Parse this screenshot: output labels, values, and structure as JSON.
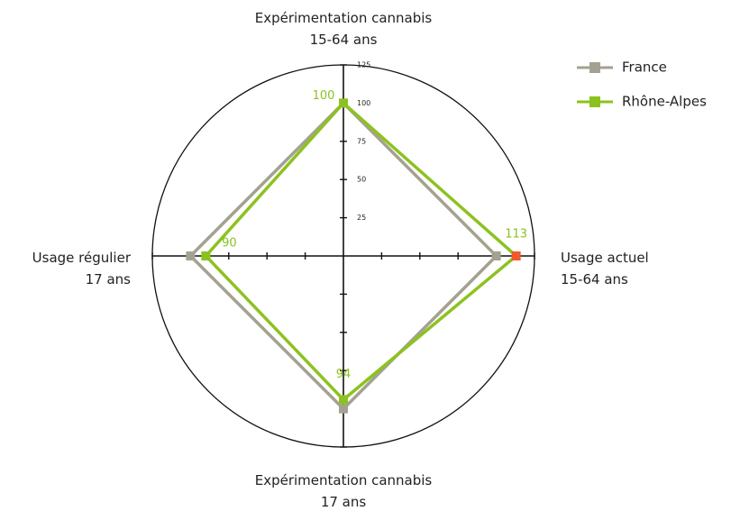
{
  "chart_data": {
    "type": "radar",
    "categories": [
      "Expérimentation cannabis\n15-64 ans",
      "Usage actuel\n15-64 ans",
      "Expérimentation cannabis\n17 ans",
      "Usage régulier\n17 ans"
    ],
    "series": [
      {
        "name": "France",
        "color": "#a3a291",
        "values": [
          100,
          100,
          100,
          100
        ]
      },
      {
        "name": "Rhône-Alpes",
        "color": "#8cc21f",
        "values": [
          100,
          113,
          94,
          90
        ],
        "point_colors": [
          "#8cc21f",
          "#ee5a2c",
          "#8cc21f",
          "#8cc21f"
        ]
      }
    ],
    "value_labels_series": 1,
    "ylim": [
      0,
      125
    ],
    "yticks": [
      25,
      50,
      75,
      100,
      125
    ],
    "legend": "top-right"
  }
}
